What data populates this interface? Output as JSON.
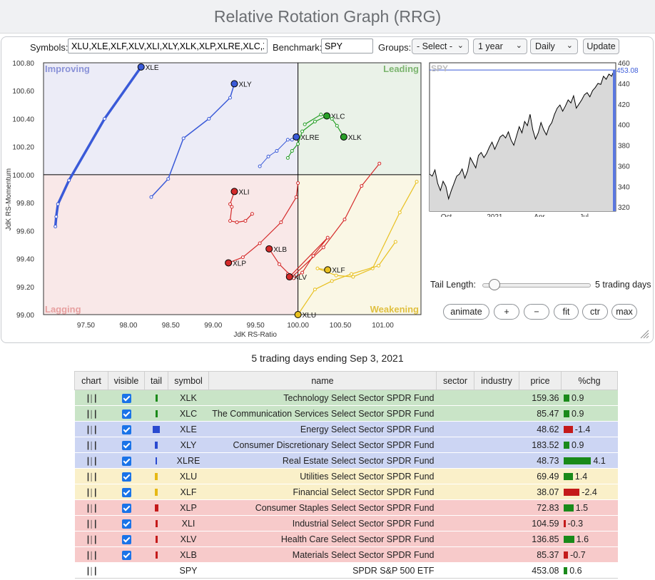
{
  "header": {
    "title": "Relative Rotation Graph (RRG)"
  },
  "toolbar": {
    "symbols_label": "Symbols:",
    "symbols_value": "XLU,XLE,XLF,XLV,XLI,XLY,XLK,XLP,XLRE,XLC,XLB",
    "benchmark_label": "Benchmark:",
    "benchmark_value": "SPY",
    "groups_label": "Groups:",
    "groups_value": "- Select -",
    "period_value": "1 year",
    "frequency_value": "Daily",
    "update_label": "Update"
  },
  "colors": {
    "improving": "#ececf7",
    "leading": "#eaf2e8",
    "lagging": "#f9e8e8",
    "weakening": "#faf7e5",
    "row_leading": "#c9e4c7",
    "row_improving": "#ccd5f3",
    "row_weakening": "#faf0c9",
    "row_lagging": "#f7caca",
    "up": "#1a8a1a",
    "down": "#c41a1a"
  },
  "chart_data": [
    {
      "type": "scatter",
      "title": "",
      "xlabel": "JdK RS-Ratio",
      "ylabel": "JdK RS-Momentum",
      "xlim": [
        97.0,
        101.45
      ],
      "ylim": [
        99.0,
        100.8
      ],
      "xticks": [
        "97.50",
        "98.00",
        "98.50",
        "99.00",
        "99.50",
        "100.00",
        "100.50",
        "101.00"
      ],
      "yticks": [
        "99.00",
        "99.20",
        "99.40",
        "99.60",
        "99.80",
        "100.00",
        "100.20",
        "100.40",
        "100.60",
        "100.80"
      ],
      "quadrants": {
        "improving": "Improving",
        "leading": "Leading",
        "lagging": "Lagging",
        "weakening": "Weakening"
      },
      "series": [
        {
          "name": "XLE",
          "color": "#3a5ad8",
          "width": 3.5,
          "points": [
            [
              97.14,
              99.63
            ],
            [
              97.15,
              99.7
            ],
            [
              97.17,
              99.79
            ],
            [
              97.3,
              99.96
            ],
            [
              97.72,
              100.4
            ],
            [
              98.15,
              100.77
            ]
          ]
        },
        {
          "name": "XLY",
          "color": "#3a5ad8",
          "width": 1.5,
          "points": [
            [
              98.27,
              99.84
            ],
            [
              98.47,
              99.97
            ],
            [
              98.65,
              100.26
            ],
            [
              98.95,
              100.4
            ],
            [
              99.2,
              100.55
            ],
            [
              99.25,
              100.65
            ]
          ]
        },
        {
          "name": "XLRE",
          "color": "#3a5ad8",
          "width": 1,
          "points": [
            [
              99.55,
              100.06
            ],
            [
              99.65,
              100.13
            ],
            [
              99.75,
              100.17
            ],
            [
              99.88,
              100.25
            ],
            [
              99.93,
              100.25
            ],
            [
              99.98,
              100.27
            ]
          ]
        },
        {
          "name": "XLC",
          "color": "#28a028",
          "width": 1.2,
          "points": [
            [
              99.88,
              100.12
            ],
            [
              99.93,
              100.17
            ],
            [
              100.0,
              100.22
            ],
            [
              100.05,
              100.31
            ],
            [
              100.2,
              100.38
            ],
            [
              100.34,
              100.42
            ]
          ]
        },
        {
          "name": "XLK",
          "color": "#28a028",
          "width": 1.2,
          "points": [
            [
              100.08,
              100.36
            ],
            [
              100.27,
              100.43
            ],
            [
              100.4,
              100.4
            ],
            [
              100.46,
              100.35
            ],
            [
              100.54,
              100.27
            ]
          ]
        },
        {
          "name": "XLI",
          "color": "#d42a2a",
          "width": 1.2,
          "points": [
            [
              99.46,
              99.72
            ],
            [
              99.38,
              99.67
            ],
            [
              99.28,
              99.66
            ],
            [
              99.2,
              99.67
            ],
            [
              99.22,
              99.77
            ],
            [
              99.2,
              99.79
            ],
            [
              99.25,
              99.88
            ]
          ]
        },
        {
          "name": "XLP",
          "color": "#d42a2a",
          "width": 1.2,
          "points": [
            [
              100.0,
              99.94
            ],
            [
              99.98,
              99.84
            ],
            [
              99.8,
              99.66
            ],
            [
              99.55,
              99.51
            ],
            [
              99.35,
              99.41
            ],
            [
              99.18,
              99.37
            ]
          ]
        },
        {
          "name": "XLB",
          "color": "#d42a2a",
          "width": 1.2,
          "points": [
            [
              100.96,
              100.08
            ],
            [
              100.75,
              99.92
            ],
            [
              100.55,
              99.68
            ],
            [
              100.3,
              99.48
            ],
            [
              99.93,
              99.27
            ],
            [
              99.78,
              99.36
            ],
            [
              99.66,
              99.47
            ]
          ]
        },
        {
          "name": "XLV",
          "color": "#d42a2a",
          "width": 1.2,
          "points": [
            [
              99.88,
              99.29
            ],
            [
              99.95,
              99.26
            ],
            [
              100.05,
              99.3
            ],
            [
              100.18,
              99.42
            ],
            [
              100.35,
              99.55
            ],
            [
              99.9,
              99.27
            ]
          ]
        },
        {
          "name": "XLF",
          "color": "#e8c020",
          "width": 1.2,
          "points": [
            [
              101.4,
              99.95
            ],
            [
              101.2,
              99.73
            ],
            [
              100.88,
              99.33
            ],
            [
              100.65,
              99.27
            ],
            [
              100.45,
              99.28
            ],
            [
              100.23,
              99.33
            ],
            [
              100.35,
              99.32
            ]
          ]
        },
        {
          "name": "XLU",
          "color": "#e8c020",
          "width": 1.2,
          "points": [
            [
              101.15,
              99.52
            ],
            [
              100.95,
              99.35
            ],
            [
              100.63,
              99.29
            ],
            [
              100.4,
              99.24
            ],
            [
              100.2,
              99.18
            ],
            [
              100.0,
              99.0
            ]
          ]
        }
      ]
    },
    {
      "type": "line",
      "title": "",
      "legend": "SPY",
      "last_value_label": "453.08",
      "ylim": [
        316,
        460
      ],
      "yticks": [
        "460",
        "440",
        "420",
        "400",
        "380",
        "360",
        "340",
        "320"
      ],
      "xticks": [
        "Oct",
        "2021",
        "Apr",
        "Jul"
      ],
      "values": [
        352,
        350,
        356,
        343,
        336,
        345,
        340,
        328,
        336,
        343,
        350,
        352,
        357,
        348,
        355,
        368,
        363,
        358,
        370,
        373,
        368,
        372,
        378,
        383,
        376,
        382,
        388,
        390,
        387,
        393,
        385,
        380,
        389,
        398,
        392,
        403,
        399,
        410,
        395,
        386,
        392,
        402,
        395,
        390,
        398,
        402,
        410,
        416,
        419,
        413,
        418,
        424,
        421,
        428,
        416,
        420,
        424,
        429,
        431,
        427,
        433,
        436,
        440,
        439,
        447,
        444,
        449,
        447,
        453
      ]
    }
  ],
  "rrg_controls": {
    "tail_length_label": "Tail Length:",
    "tail_value_text": "5 trading days",
    "tail_fraction": 0.1,
    "buttons": {
      "animate": "animate",
      "plus": "+",
      "minus": "−",
      "fit": "fit",
      "ctr": "ctr",
      "max": "max"
    }
  },
  "summary": {
    "caption": "5 trading days ending Sep 3, 2021",
    "headers": [
      "chart",
      "visible",
      "tail",
      "symbol",
      "name",
      "sector",
      "industry",
      "price",
      "%chg"
    ],
    "rows": [
      {
        "symbol": "XLK",
        "name": "Technology Select Sector SPDR Fund",
        "price": "159.36",
        "chg": "0.9",
        "chg_value": 0.9,
        "group": "leading",
        "tail_color": "#1a8a1a",
        "tail_w": 3,
        "visible": true
      },
      {
        "symbol": "XLC",
        "name": "The Communication Services Select Sector SPDR Fund",
        "price": "85.47",
        "chg": "0.9",
        "chg_value": 0.9,
        "group": "leading",
        "tail_color": "#1a8a1a",
        "tail_w": 3,
        "visible": true
      },
      {
        "symbol": "XLE",
        "name": "Energy Select Sector SPDR Fund",
        "price": "48.62",
        "chg": "-1.4",
        "chg_value": -1.4,
        "group": "improving",
        "tail_color": "#2a4ad0",
        "tail_w": 10,
        "visible": true
      },
      {
        "symbol": "XLY",
        "name": "Consumer Discretionary Select Sector SPDR Fund",
        "price": "183.52",
        "chg": "0.9",
        "chg_value": 0.9,
        "group": "improving",
        "tail_color": "#2a4ad0",
        "tail_w": 4,
        "visible": true
      },
      {
        "symbol": "XLRE",
        "name": "Real Estate Select Sector SPDR Fund",
        "price": "48.73",
        "chg": "4.1",
        "chg_value": 4.1,
        "group": "improving",
        "tail_color": "#2a4ad0",
        "tail_w": 2,
        "visible": true
      },
      {
        "symbol": "XLU",
        "name": "Utilities Select Sector SPDR Fund",
        "price": "69.49",
        "chg": "1.4",
        "chg_value": 1.4,
        "group": "weakening",
        "tail_color": "#e6b814",
        "tail_w": 4,
        "visible": true
      },
      {
        "symbol": "XLF",
        "name": "Financial Select Sector SPDR Fund",
        "price": "38.07",
        "chg": "-2.4",
        "chg_value": -2.4,
        "group": "weakening",
        "tail_color": "#e6b814",
        "tail_w": 4,
        "visible": true
      },
      {
        "symbol": "XLP",
        "name": "Consumer Staples Select Sector SPDR Fund",
        "price": "72.83",
        "chg": "1.5",
        "chg_value": 1.5,
        "group": "lagging",
        "tail_color": "#c41a1a",
        "tail_w": 5,
        "visible": true
      },
      {
        "symbol": "XLI",
        "name": "Industrial Select Sector SPDR Fund",
        "price": "104.59",
        "chg": "-0.3",
        "chg_value": -0.3,
        "group": "lagging",
        "tail_color": "#c41a1a",
        "tail_w": 3,
        "visible": true
      },
      {
        "symbol": "XLV",
        "name": "Health Care Select Sector SPDR Fund",
        "price": "136.85",
        "chg": "1.6",
        "chg_value": 1.6,
        "group": "lagging",
        "tail_color": "#c41a1a",
        "tail_w": 3,
        "visible": true
      },
      {
        "symbol": "XLB",
        "name": "Materials Select Sector SPDR Fund",
        "price": "85.37",
        "chg": "-0.7",
        "chg_value": -0.7,
        "group": "lagging",
        "tail_color": "#c41a1a",
        "tail_w": 3,
        "visible": true
      },
      {
        "symbol": "SPY",
        "name": "SPDR S&P 500 ETF",
        "price": "453.08",
        "chg": "0.6",
        "chg_value": 0.6,
        "group": "benchmark",
        "tail_color": "",
        "tail_w": 0,
        "visible": false
      }
    ]
  }
}
